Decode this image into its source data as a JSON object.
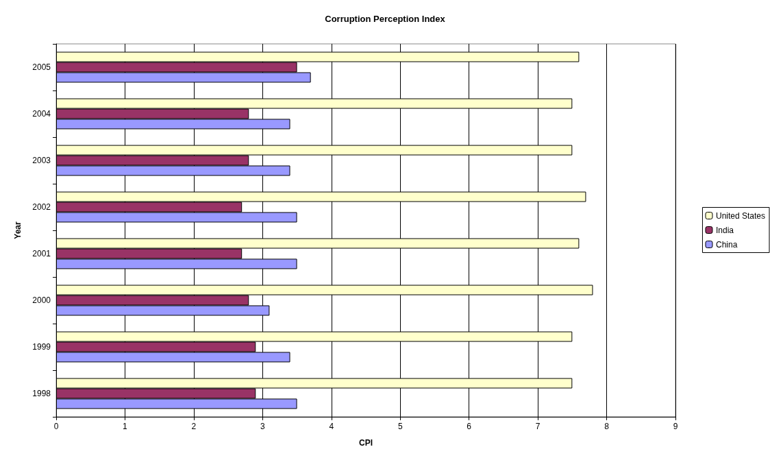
{
  "chart_data": {
    "type": "bar",
    "orientation": "horizontal",
    "title": "Corruption Perception Index",
    "xlabel": "CPI",
    "ylabel": "Year",
    "categories": [
      "2005",
      "2004",
      "2003",
      "2002",
      "2001",
      "2000",
      "1999",
      "1998"
    ],
    "series": [
      {
        "name": "United States",
        "color": "#ffffcc",
        "values": [
          7.6,
          7.5,
          7.5,
          7.7,
          7.6,
          7.8,
          7.5,
          7.5
        ]
      },
      {
        "name": "India",
        "color": "#993366",
        "values": [
          3.5,
          2.8,
          2.8,
          2.7,
          2.7,
          2.8,
          2.9,
          2.9
        ]
      },
      {
        "name": "China",
        "color": "#9999ff",
        "values": [
          3.7,
          3.4,
          3.4,
          3.5,
          3.5,
          3.1,
          3.4,
          3.5
        ]
      }
    ],
    "xlim": [
      0,
      9
    ],
    "xticks": [
      0,
      1,
      2,
      3,
      4,
      5,
      6,
      7,
      8,
      9
    ],
    "grid": "x",
    "legend": "right"
  }
}
